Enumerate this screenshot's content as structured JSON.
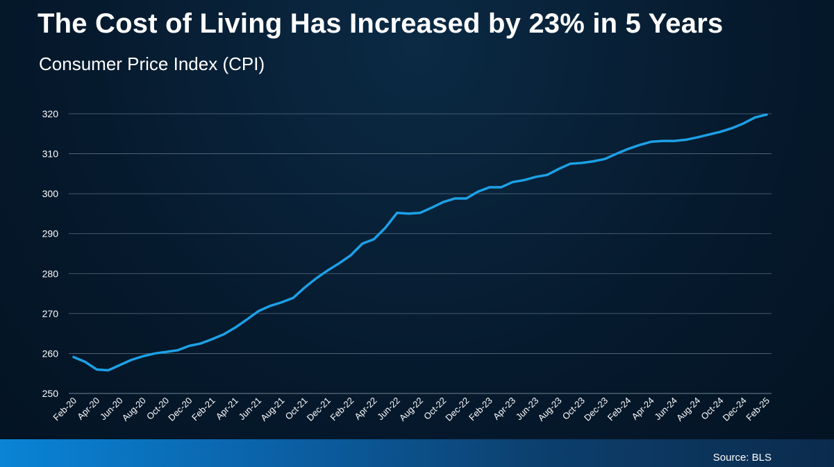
{
  "colors": {
    "line": "#1da1e6",
    "grid": "#5b6e80",
    "text": "#ffffff"
  },
  "footer": {
    "source": "Source: BLS"
  },
  "chart_data": {
    "type": "line",
    "title": "The Cost of Living Has Increased by 23% in 5 Years",
    "subtitle": "Consumer Price Index (CPI)",
    "xlabel": "",
    "ylabel": "",
    "ylim": [
      250,
      320
    ],
    "yticks": [
      250,
      260,
      270,
      280,
      290,
      300,
      310,
      320
    ],
    "grid": true,
    "x": [
      "Feb-20",
      "Mar-20",
      "Apr-20",
      "May-20",
      "Jun-20",
      "Jul-20",
      "Aug-20",
      "Sep-20",
      "Oct-20",
      "Nov-20",
      "Dec-20",
      "Jan-21",
      "Feb-21",
      "Mar-21",
      "Apr-21",
      "May-21",
      "Jun-21",
      "Jul-21",
      "Aug-21",
      "Sep-21",
      "Oct-21",
      "Nov-21",
      "Dec-21",
      "Jan-22",
      "Feb-22",
      "Mar-22",
      "Apr-22",
      "May-22",
      "Jun-22",
      "Jul-22",
      "Aug-22",
      "Sep-22",
      "Oct-22",
      "Nov-22",
      "Dec-22",
      "Jan-23",
      "Feb-23",
      "Mar-23",
      "Apr-23",
      "May-23",
      "Jun-23",
      "Jul-23",
      "Aug-23",
      "Sep-23",
      "Oct-23",
      "Nov-23",
      "Dec-23",
      "Jan-24",
      "Feb-24",
      "Mar-24",
      "Apr-24",
      "May-24",
      "Jun-24",
      "Jul-24",
      "Aug-24",
      "Sep-24",
      "Oct-24",
      "Nov-24",
      "Dec-24",
      "Jan-25",
      "Feb-25"
    ],
    "xticks": [
      "Feb-20",
      "Apr-20",
      "Jun-20",
      "Aug-20",
      "Oct-20",
      "Dec-20",
      "Feb-21",
      "Apr-21",
      "Jun-21",
      "Aug-21",
      "Oct-21",
      "Dec-21",
      "Feb-22",
      "Apr-22",
      "Jun-22",
      "Aug-22",
      "Oct-22",
      "Dec-22",
      "Feb-23",
      "Apr-23",
      "Jun-23",
      "Aug-23",
      "Oct-23",
      "Dec-23",
      "Feb-24",
      "Apr-24",
      "Jun-24",
      "Aug-24",
      "Oct-24",
      "Dec-24",
      "Feb-25"
    ],
    "series": [
      {
        "values": [
          259.1,
          257.9,
          256.0,
          255.8,
          257.1,
          258.4,
          259.3,
          260.0,
          260.4,
          260.8,
          261.9,
          262.5,
          263.6,
          264.8,
          266.5,
          268.5,
          270.6,
          271.9,
          272.8,
          273.9,
          276.5,
          278.8,
          280.8,
          282.6,
          284.6,
          287.5,
          288.6,
          291.5,
          295.2,
          295.0,
          295.2,
          296.5,
          297.9,
          298.8,
          298.8,
          300.5,
          301.6,
          301.6,
          302.9,
          303.4,
          304.2,
          304.7,
          306.2,
          307.5,
          307.7,
          308.1,
          308.7,
          310.0,
          311.2,
          312.2,
          313.0,
          313.2,
          313.2,
          313.5,
          314.1,
          314.8,
          315.5,
          316.4,
          317.6,
          319.1,
          319.8
        ]
      }
    ]
  }
}
